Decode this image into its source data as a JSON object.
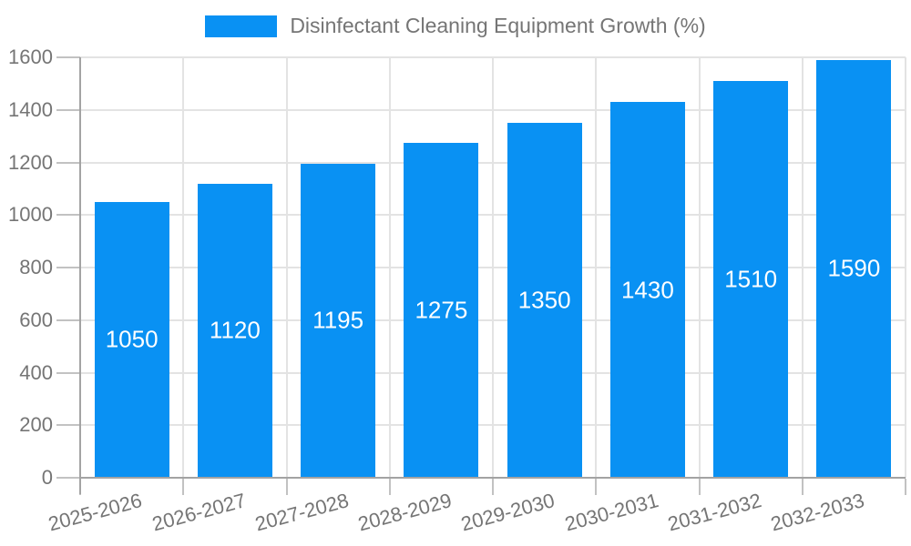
{
  "legend": {
    "label": "Disinfectant Cleaning Equipment Growth (%)"
  },
  "chart_data": {
    "type": "bar",
    "title": "Disinfectant Cleaning Equipment Growth (%)",
    "categories": [
      "2025-2026",
      "2026-2027",
      "2027-2028",
      "2028-2029",
      "2029-2030",
      "2030-2031",
      "2031-2032",
      "2032-2033"
    ],
    "values": [
      1050,
      1120,
      1195,
      1275,
      1350,
      1430,
      1510,
      1590
    ],
    "value_labels": [
      "1050",
      "1120",
      "1195",
      "1275",
      "1350",
      "1430",
      "1510",
      "1590"
    ],
    "xlabel": "",
    "ylabel": "",
    "ylim": [
      0,
      1600
    ],
    "yticks": [
      0,
      200,
      400,
      600,
      800,
      1000,
      1200,
      1400,
      1600
    ],
    "grid": true,
    "legend_position": "top",
    "x_label_rotation_deg": -15,
    "colors": {
      "bar": "#0991f3",
      "value_label": "#ffffff",
      "axis_text": "#757575",
      "gridline": "#e3e3e3",
      "axis_line": "#a3a3a3",
      "tick": "#c2c2c2",
      "background": "#ffffff"
    }
  }
}
